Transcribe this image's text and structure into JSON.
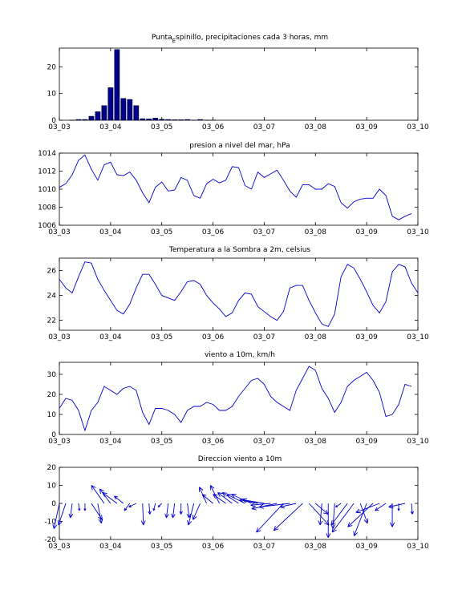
{
  "figure": {
    "colors": {
      "series": "#0000cc",
      "bars": "#00008b",
      "axes": "#000000",
      "background": "#ffffff"
    }
  },
  "chart_data": [
    {
      "type": "bar",
      "title": "Punta_Espinillo, precipitaciones cada 3 horas, mm",
      "title_parts": {
        "prefix": "Punta",
        "subscript": "E",
        "suffix": "spinillo, precipitaciones cada 3 horas, mm"
      },
      "x_tick_labels": [
        "03_03",
        "03_04",
        "03_05",
        "03_06",
        "03_07",
        "03_08",
        "03_09",
        "03_10"
      ],
      "y_ticks": [
        0,
        10,
        20
      ],
      "xlim": [
        0,
        7
      ],
      "ylim": [
        0,
        27
      ],
      "x": [
        0.25,
        0.375,
        0.5,
        0.625,
        0.75,
        0.875,
        1.0,
        1.125,
        1.25,
        1.375,
        1.5,
        1.625,
        1.75,
        1.875,
        2.0,
        2.125,
        2.25,
        2.375,
        2.5,
        2.625,
        2.75,
        2.875,
        3.0
      ],
      "values": [
        0.1,
        0.3,
        0.3,
        1.5,
        3.2,
        5.5,
        12.2,
        26.5,
        8.2,
        7.8,
        5.5,
        0.6,
        0.5,
        0.8,
        0.4,
        0.3,
        0.2,
        0.2,
        0.3,
        0.1,
        0.3,
        0.1,
        0.1
      ]
    },
    {
      "type": "line",
      "title": "presion a nivel del mar, hPa",
      "x_tick_labels": [
        "03_03",
        "03_04",
        "03_05",
        "03_06",
        "03_07",
        "03_08",
        "03_09",
        "03_10"
      ],
      "y_ticks": [
        1006,
        1008,
        1010,
        1012,
        1014
      ],
      "xlim": [
        0,
        7
      ],
      "ylim": [
        1006,
        1014
      ],
      "x_step": 0.125,
      "values": [
        1010.2,
        1010.6,
        1011.6,
        1013.2,
        1013.8,
        1012.2,
        1011.0,
        1012.7,
        1013.0,
        1011.6,
        1011.5,
        1011.9,
        1011.0,
        1009.6,
        1008.5,
        1010.2,
        1010.8,
        1009.8,
        1009.9,
        1011.3,
        1011.0,
        1009.3,
        1009.0,
        1010.6,
        1011.1,
        1010.7,
        1011.0,
        1012.5,
        1012.4,
        1010.4,
        1010.0,
        1011.9,
        1011.3,
        1011.7,
        1012.1,
        1011.0,
        1009.8,
        1009.1,
        1010.5,
        1010.5,
        1010.0,
        1010.0,
        1010.6,
        1010.3,
        1008.5,
        1007.9,
        1008.6,
        1008.9,
        1009.0,
        1009.0,
        1010.0,
        1009.3,
        1007.0,
        1006.6,
        1007.0,
        1007.3
      ]
    },
    {
      "type": "line",
      "title": "Temperatura a la Sombra a 2m, celsius",
      "x_tick_labels": [
        "03_03",
        "03_04",
        "03_05",
        "03_06",
        "03_07",
        "03_08",
        "03_09",
        "03_10"
      ],
      "y_ticks": [
        22,
        24,
        26
      ],
      "xlim": [
        0,
        7
      ],
      "ylim": [
        21.2,
        27.0
      ],
      "x_step": 0.125,
      "values": [
        25.3,
        24.6,
        24.2,
        25.5,
        26.7,
        26.6,
        25.3,
        24.4,
        23.6,
        22.8,
        22.5,
        23.3,
        24.6,
        25.7,
        25.7,
        24.9,
        24.0,
        23.8,
        23.6,
        24.3,
        25.1,
        25.2,
        24.9,
        24.0,
        23.4,
        22.9,
        22.3,
        22.6,
        23.6,
        24.2,
        24.1,
        23.1,
        22.7,
        22.3,
        22.0,
        22.7,
        24.6,
        24.8,
        24.8,
        23.6,
        22.6,
        21.7,
        21.5,
        22.5,
        25.5,
        26.5,
        26.2,
        25.3,
        24.3,
        23.2,
        22.6,
        23.5,
        25.9,
        26.5,
        26.3,
        25.0,
        24.2
      ]
    },
    {
      "type": "line",
      "title": "viento a 10m, km/h",
      "x_tick_labels": [
        "03_03",
        "03_04",
        "03_05",
        "03_06",
        "03_07",
        "03_08",
        "03_09",
        "03_10"
      ],
      "y_ticks": [
        0,
        10,
        20,
        30
      ],
      "xlim": [
        0,
        7
      ],
      "ylim": [
        0,
        36
      ],
      "x_step": 0.125,
      "values": [
        13,
        18,
        17,
        12,
        2,
        12,
        16,
        24,
        22,
        20,
        23,
        24,
        22,
        11,
        5,
        13,
        13,
        12,
        10,
        6,
        12,
        14,
        14,
        16,
        15,
        12,
        12,
        14,
        19,
        23,
        27,
        28,
        25,
        19,
        16,
        14,
        12,
        22,
        28,
        34,
        32,
        23,
        18,
        11,
        16,
        24,
        27,
        29,
        31,
        27,
        21,
        9,
        10,
        15,
        25,
        24
      ]
    },
    {
      "type": "vector",
      "title": "Direccion viento a 10m",
      "x_tick_labels": [
        "03_03",
        "03_04",
        "03_05",
        "03_06",
        "03_07",
        "03_08",
        "03_09",
        "03_10"
      ],
      "y_ticks": [
        -20,
        -10,
        0,
        10,
        20
      ],
      "xlim": [
        0,
        7
      ],
      "ylim": [
        -20,
        20
      ],
      "x_step": 0.125,
      "u": [
        -3,
        -4,
        -1,
        0.5,
        0,
        6,
        2,
        -7,
        -6,
        -8,
        -5,
        -3,
        -4,
        0.5,
        0.5,
        -1,
        -2,
        -1,
        -1,
        0,
        1,
        -3,
        -4,
        -4,
        -6,
        -5,
        -7,
        -8,
        -9,
        -10,
        -11,
        -10,
        -12,
        -11,
        -14,
        -15,
        -17,
        -9,
        -16,
        11,
        7,
        -1,
        0,
        -1,
        -3,
        -9,
        -12,
        4,
        -7,
        -14,
        -13,
        -6,
        0,
        0,
        -9,
        0.5
      ],
      "v": [
        -14,
        -12,
        -8,
        -4,
        -4,
        -9,
        -11,
        10,
        8,
        6,
        4,
        -4,
        -2,
        -12,
        -6,
        -4,
        -2,
        -8,
        -8,
        -6,
        -8,
        -12,
        -9,
        9,
        5,
        10,
        5,
        6,
        6,
        5,
        5,
        2,
        2,
        -1,
        -3,
        -16,
        -2,
        -2,
        -15,
        -12,
        -6,
        -12,
        -19,
        -14,
        -2,
        -12,
        -16,
        -11,
        -18,
        -13,
        -5,
        -4,
        -13,
        -4,
        -2,
        -6
      ]
    }
  ]
}
